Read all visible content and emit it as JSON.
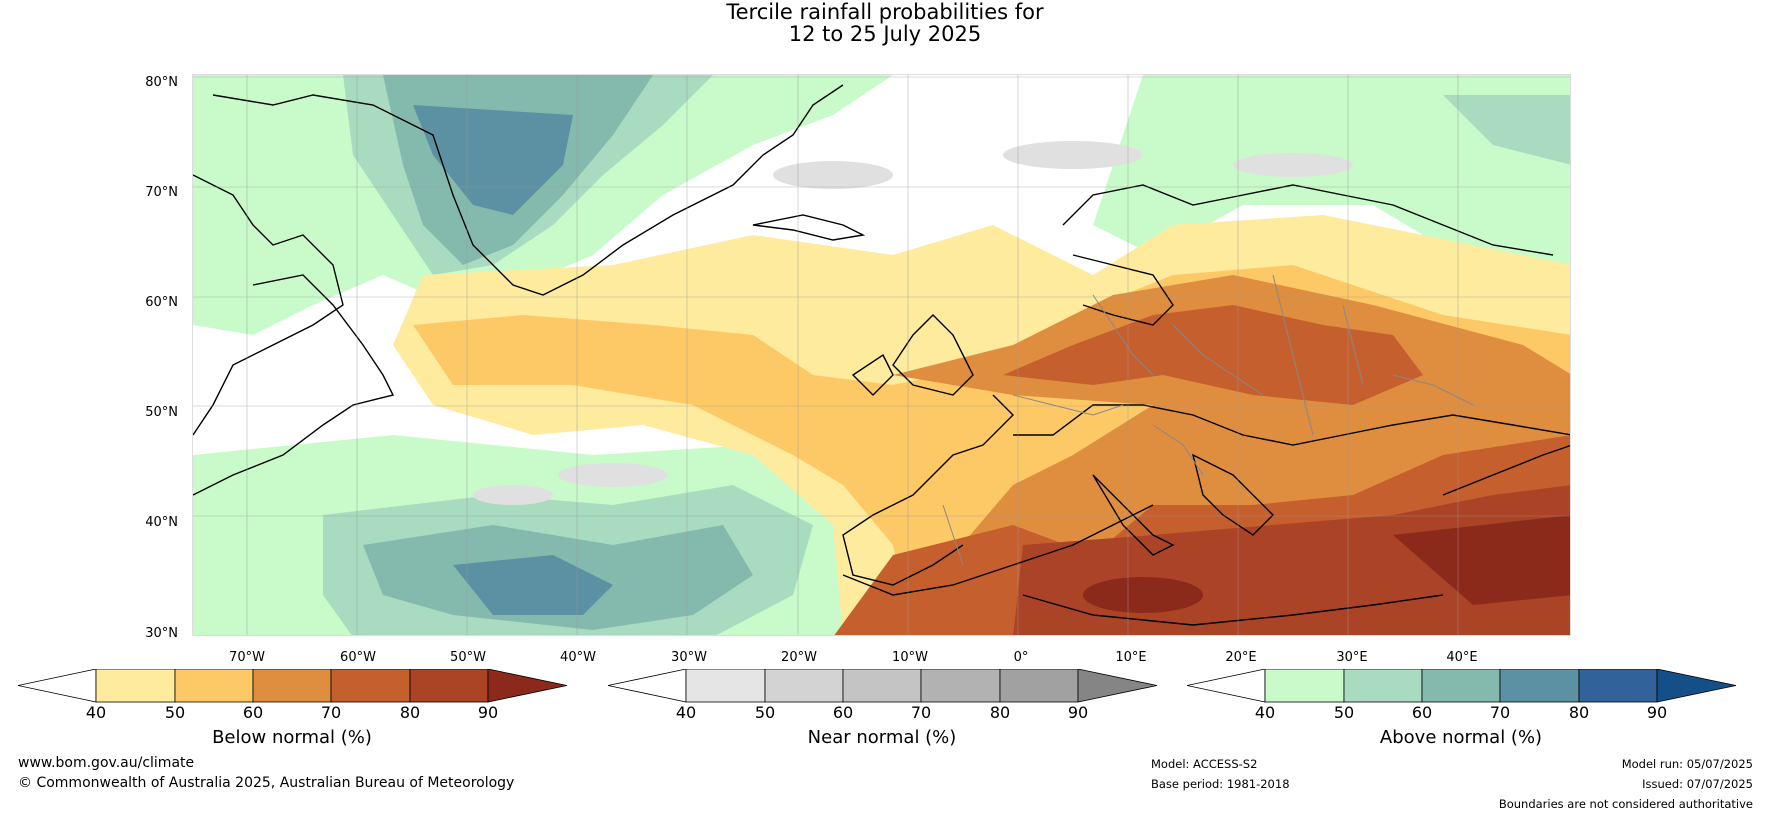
{
  "title": {
    "line1": "Tercile rainfall probabilities for",
    "line2": "12 to 25 July 2025"
  },
  "map": {
    "lat_labels": [
      "80°N",
      "70°N",
      "60°N",
      "50°N",
      "40°N",
      "30°N"
    ],
    "lon_labels": [
      "70°W",
      "60°W",
      "50°W",
      "40°W",
      "30°W",
      "20°W",
      "10°W",
      "0°",
      "10°E",
      "20°E",
      "30°E",
      "40°E"
    ],
    "region": "North Atlantic and Europe"
  },
  "colorbars": [
    {
      "title": "Below normal (%)",
      "ticks": [
        "40",
        "50",
        "60",
        "70",
        "80",
        "90"
      ],
      "colors": [
        "#ffffff",
        "#feeb9e",
        "#fdc966",
        "#df8d3f",
        "#c65f2e",
        "#ab4326",
        "#8b2a1a"
      ]
    },
    {
      "title": "Near normal (%)",
      "ticks": [
        "40",
        "50",
        "60",
        "70",
        "80",
        "90"
      ],
      "colors": [
        "#ffffff",
        "#e5e5e5",
        "#d3d3d3",
        "#c4c4c4",
        "#b2b2b2",
        "#a1a1a1",
        "#858585"
      ]
    },
    {
      "title": "Above normal (%)",
      "ticks": [
        "40",
        "50",
        "60",
        "70",
        "80",
        "90"
      ],
      "colors": [
        "#ffffff",
        "#c8fbc9",
        "#a8dbc0",
        "#84b9ae",
        "#5c91a3",
        "#31639a",
        "#154f88"
      ]
    }
  ],
  "footer": {
    "website": "www.bom.gov.au/climate",
    "copyright": "© Commonwealth of Australia 2025, Australian Bureau of Meteorology",
    "model": "Model: ACCESS-S2",
    "base_period": "Base period: 1981-2018",
    "model_run": "Model run: 05/07/2025",
    "issued": "Issued: 07/07/2025",
    "disclaimer": "Boundaries are not considered authoritative"
  }
}
